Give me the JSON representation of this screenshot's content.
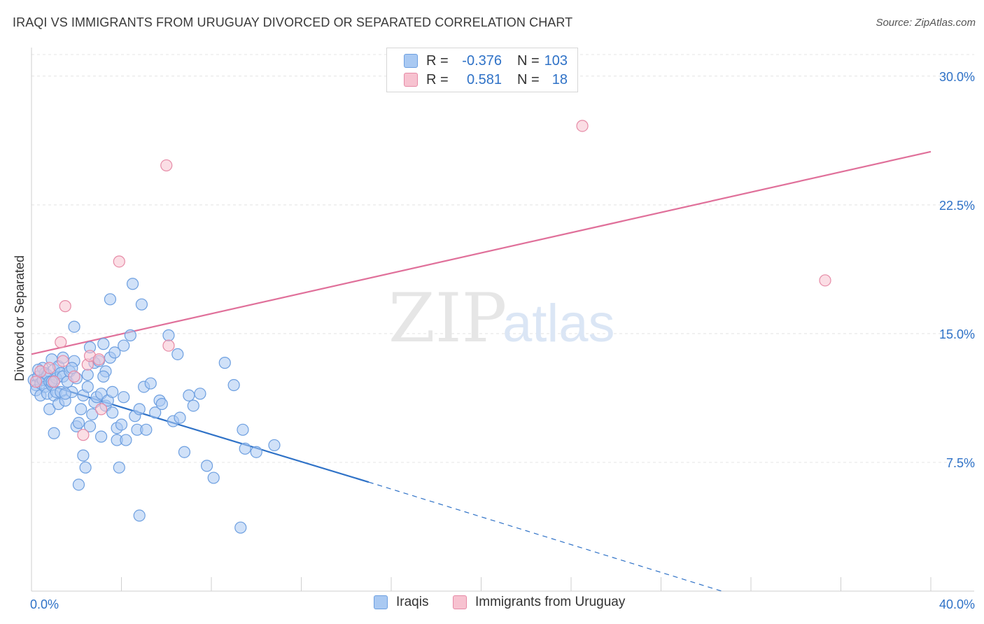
{
  "title": "IRAQI VS IMMIGRANTS FROM URUGUAY DIVORCED OR SEPARATED CORRELATION CHART",
  "source": "Source: ZipAtlas.com",
  "watermark": {
    "zip": "ZIP",
    "atlas": "atlas"
  },
  "legend": {
    "rows": [
      {
        "r_label": "R =",
        "r_value": "-0.376",
        "n_label": "N =",
        "n_value": "103"
      },
      {
        "r_label": "R =",
        "r_value": "0.581",
        "n_label": "N =",
        "n_value": "18"
      }
    ]
  },
  "colors": {
    "iraqis_fill": "#a9c9f2",
    "iraqis_stroke": "#6d9fe0",
    "iraqis_line": "#2f72c7",
    "uruguay_fill": "#f7c2d0",
    "uruguay_stroke": "#e68aa6",
    "uruguay_line": "#e0709a",
    "axis_label": "#2f72c7",
    "grid": "#e4e4e4"
  },
  "chart_data": {
    "type": "scatter",
    "title": "IRAQI VS IMMIGRANTS FROM URUGUAY DIVORCED OR SEPARATED CORRELATION CHART",
    "xlabel": "",
    "ylabel": "Divorced or Separated",
    "xlim": [
      0,
      40
    ],
    "ylim": [
      0,
      31.5
    ],
    "x_tick_labels": [
      "0.0%",
      "40.0%"
    ],
    "y_ticks": [
      7.5,
      15.0,
      22.5,
      30.0
    ],
    "y_tick_labels": [
      "7.5%",
      "15.0%",
      "22.5%",
      "30.0%"
    ],
    "grid": true,
    "legend_position": "top-center",
    "series": [
      {
        "name": "Iraqis",
        "points": [
          [
            0.1,
            12.3
          ],
          [
            0.2,
            12.0
          ],
          [
            0.2,
            11.7
          ],
          [
            0.3,
            12.5
          ],
          [
            0.4,
            12.1
          ],
          [
            0.4,
            11.4
          ],
          [
            0.5,
            13.0
          ],
          [
            0.5,
            12.3
          ],
          [
            0.6,
            12.7
          ],
          [
            0.6,
            11.9
          ],
          [
            0.7,
            12.6
          ],
          [
            0.7,
            11.5
          ],
          [
            0.8,
            12.2
          ],
          [
            0.8,
            10.6
          ],
          [
            0.9,
            13.5
          ],
          [
            0.9,
            12.0
          ],
          [
            1.0,
            11.4
          ],
          [
            1.0,
            12.9
          ],
          [
            1.1,
            12.4
          ],
          [
            1.1,
            11.6
          ],
          [
            1.2,
            13.1
          ],
          [
            1.2,
            10.9
          ],
          [
            1.3,
            12.7
          ],
          [
            1.3,
            11.6
          ],
          [
            1.0,
            9.2
          ],
          [
            1.4,
            13.6
          ],
          [
            1.4,
            12.5
          ],
          [
            1.5,
            11.1
          ],
          [
            1.6,
            12.2
          ],
          [
            1.7,
            12.8
          ],
          [
            1.8,
            11.6
          ],
          [
            1.9,
            13.4
          ],
          [
            1.9,
            15.4
          ],
          [
            2.0,
            12.4
          ],
          [
            2.0,
            9.6
          ],
          [
            2.1,
            9.8
          ],
          [
            2.2,
            10.6
          ],
          [
            2.3,
            11.4
          ],
          [
            2.3,
            7.9
          ],
          [
            2.4,
            7.2
          ],
          [
            2.5,
            12.6
          ],
          [
            2.6,
            14.2
          ],
          [
            2.6,
            9.6
          ],
          [
            2.7,
            10.3
          ],
          [
            2.8,
            13.3
          ],
          [
            2.8,
            11.0
          ],
          [
            2.9,
            11.3
          ],
          [
            3.0,
            13.4
          ],
          [
            3.1,
            11.5
          ],
          [
            3.1,
            9.0
          ],
          [
            3.2,
            14.4
          ],
          [
            3.3,
            10.8
          ],
          [
            3.3,
            12.8
          ],
          [
            3.4,
            11.1
          ],
          [
            3.5,
            13.6
          ],
          [
            3.5,
            17.0
          ],
          [
            3.6,
            10.4
          ],
          [
            3.6,
            11.6
          ],
          [
            3.7,
            13.9
          ],
          [
            3.8,
            9.5
          ],
          [
            3.8,
            8.8
          ],
          [
            3.9,
            7.2
          ],
          [
            4.0,
            9.7
          ],
          [
            4.1,
            11.3
          ],
          [
            4.1,
            14.3
          ],
          [
            4.2,
            8.8
          ],
          [
            4.4,
            14.9
          ],
          [
            4.5,
            17.9
          ],
          [
            4.6,
            10.2
          ],
          [
            4.7,
            9.4
          ],
          [
            4.8,
            10.6
          ],
          [
            4.9,
            16.7
          ],
          [
            5.0,
            11.9
          ],
          [
            5.1,
            9.4
          ],
          [
            5.3,
            12.1
          ],
          [
            5.5,
            10.4
          ],
          [
            5.7,
            11.1
          ],
          [
            5.8,
            10.9
          ],
          [
            6.1,
            14.9
          ],
          [
            6.3,
            9.9
          ],
          [
            6.5,
            13.8
          ],
          [
            6.6,
            10.1
          ],
          [
            6.8,
            8.1
          ],
          [
            7.0,
            11.4
          ],
          [
            7.2,
            10.8
          ],
          [
            7.5,
            11.5
          ],
          [
            7.8,
            7.3
          ],
          [
            8.1,
            6.6
          ],
          [
            8.6,
            13.3
          ],
          [
            9.0,
            12.0
          ],
          [
            9.4,
            9.4
          ],
          [
            9.5,
            8.3
          ],
          [
            10.0,
            8.1
          ],
          [
            10.8,
            8.5
          ],
          [
            9.3,
            3.7
          ],
          [
            2.1,
            6.2
          ],
          [
            4.8,
            4.4
          ],
          [
            1.5,
            11.5
          ],
          [
            0.9,
            12.2
          ],
          [
            0.3,
            12.9
          ],
          [
            1.8,
            13.0
          ],
          [
            2.5,
            11.9
          ],
          [
            3.2,
            12.5
          ]
        ],
        "trend": {
          "x": [
            0,
            15
          ],
          "y": [
            12.3,
            6.35
          ]
        },
        "trend_dashed": {
          "x": [
            15,
            30.7
          ],
          "y": [
            6.35,
            0.0
          ]
        }
      },
      {
        "name": "Immigrants from Uruguay",
        "points": [
          [
            0.2,
            12.2
          ],
          [
            0.4,
            12.8
          ],
          [
            0.8,
            13.0
          ],
          [
            1.0,
            12.2
          ],
          [
            1.3,
            14.5
          ],
          [
            1.4,
            13.4
          ],
          [
            1.5,
            16.6
          ],
          [
            1.9,
            12.5
          ],
          [
            2.3,
            9.1
          ],
          [
            2.5,
            13.2
          ],
          [
            2.6,
            13.7
          ],
          [
            3.0,
            13.5
          ],
          [
            3.1,
            10.6
          ],
          [
            3.9,
            19.2
          ],
          [
            6.0,
            24.8
          ],
          [
            6.1,
            14.3
          ],
          [
            24.5,
            27.1
          ],
          [
            35.3,
            18.1
          ]
        ],
        "trend": {
          "x": [
            0,
            40
          ],
          "y": [
            13.8,
            25.6
          ]
        }
      }
    ]
  },
  "bottom_legend": [
    {
      "label": "Iraqis"
    },
    {
      "label": "Immigrants from Uruguay"
    }
  ]
}
